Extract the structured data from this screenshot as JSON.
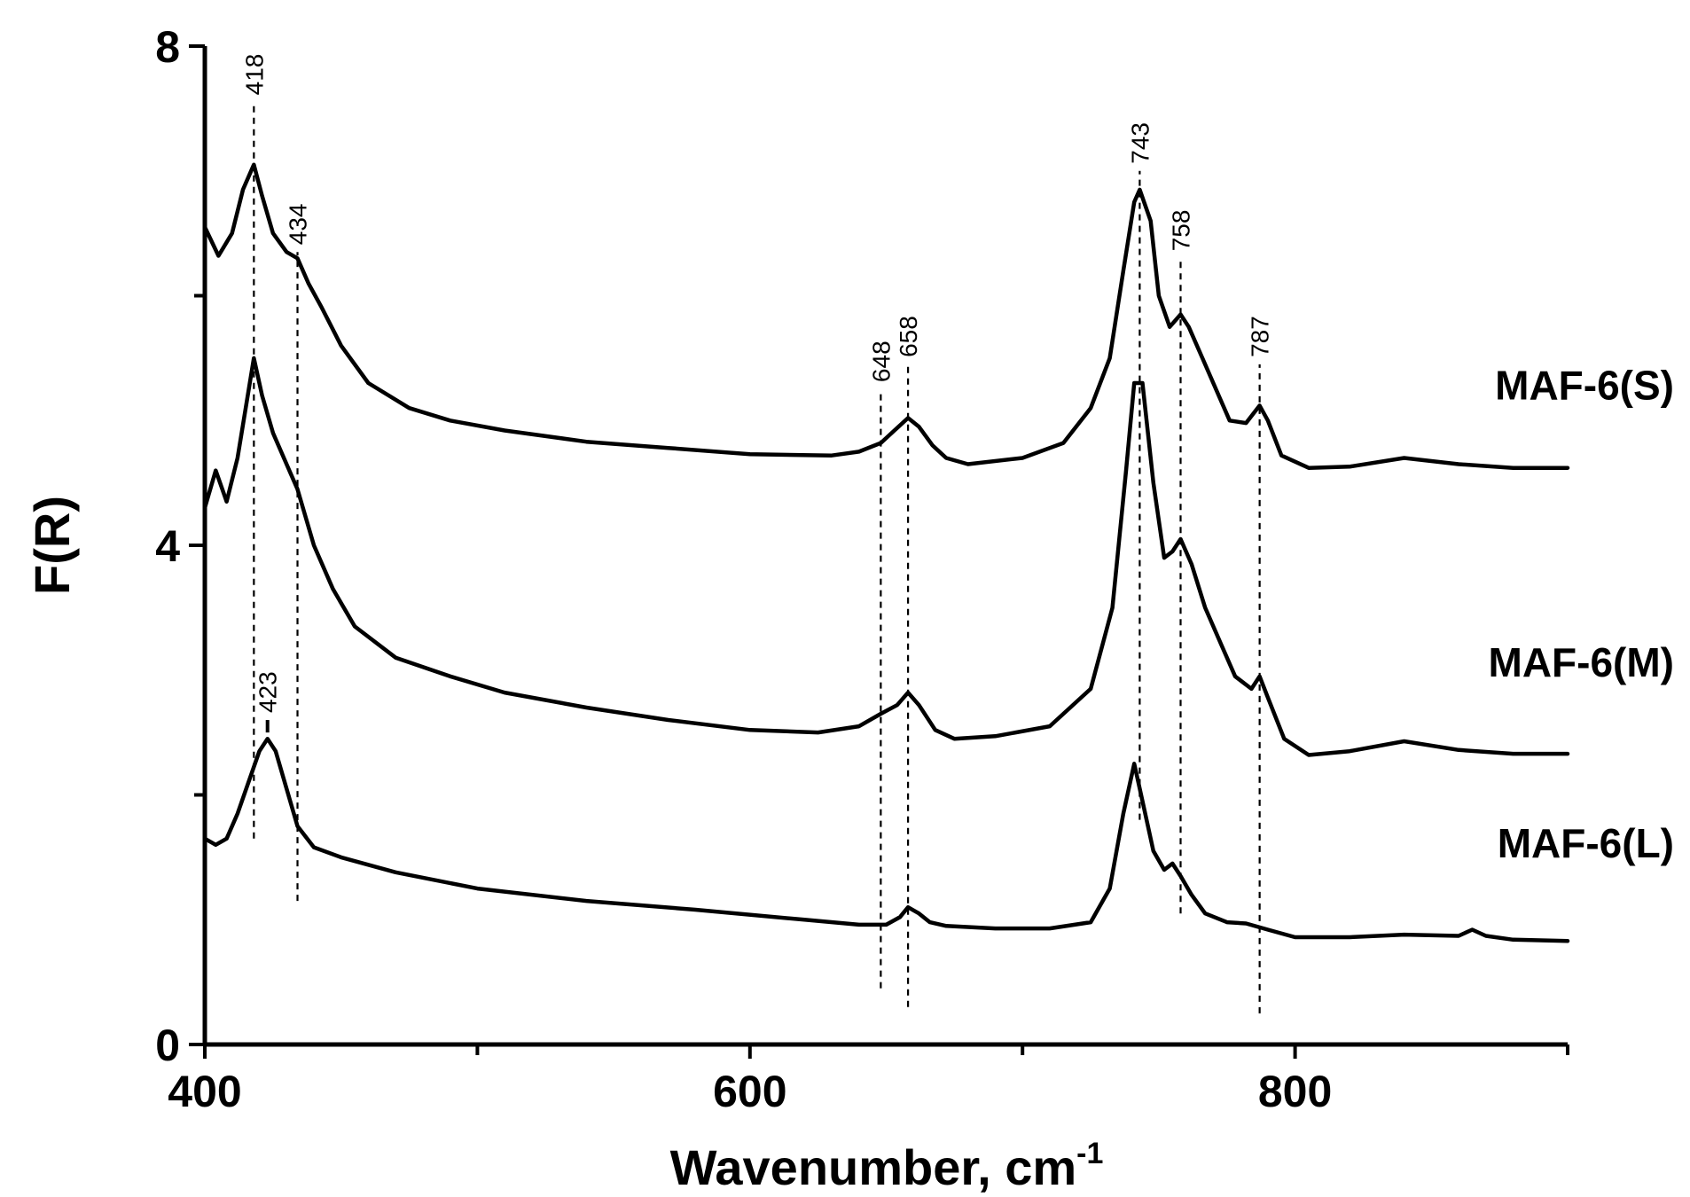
{
  "chart_data": {
    "type": "line",
    "title": "",
    "xlabel": "Wavenumber, cm",
    "xlabel_superscript": "-1",
    "ylabel": "F(R)",
    "xlim": [
      400,
      900
    ],
    "ylim": [
      0,
      8
    ],
    "x_ticks": [
      400,
      600,
      800
    ],
    "x_minor_ticks": [
      500,
      700,
      900
    ],
    "y_ticks": [
      0,
      4,
      8
    ],
    "y_minor_ticks": [
      2,
      6
    ],
    "grid": false,
    "series": [
      {
        "name": "MAF-6(S)",
        "x": [
          400,
          405,
          410,
          414,
          418,
          421,
          425,
          430,
          434,
          438,
          443,
          450,
          460,
          475,
          490,
          510,
          540,
          570,
          600,
          630,
          640,
          648,
          653,
          658,
          662,
          667,
          672,
          680,
          700,
          715,
          725,
          732,
          737,
          741,
          743,
          747,
          750,
          754,
          758,
          761,
          766,
          772,
          776,
          782,
          787,
          790,
          795,
          805,
          820,
          840,
          860,
          880,
          900
        ],
        "y": [
          6.55,
          6.32,
          6.5,
          6.85,
          7.05,
          6.8,
          6.5,
          6.35,
          6.3,
          6.1,
          5.9,
          5.6,
          5.3,
          5.1,
          5.0,
          4.92,
          4.83,
          4.78,
          4.73,
          4.72,
          4.75,
          4.82,
          4.92,
          5.02,
          4.95,
          4.8,
          4.7,
          4.65,
          4.7,
          4.82,
          5.1,
          5.5,
          6.2,
          6.75,
          6.85,
          6.6,
          6.0,
          5.75,
          5.85,
          5.75,
          5.5,
          5.2,
          5.0,
          4.98,
          5.12,
          5.0,
          4.72,
          4.62,
          4.63,
          4.7,
          4.65,
          4.62,
          4.62
        ]
      },
      {
        "name": "MAF-6(M)",
        "x": [
          400,
          404,
          408,
          412,
          415,
          418,
          421,
          425,
          430,
          434,
          440,
          447,
          455,
          470,
          490,
          510,
          540,
          570,
          600,
          625,
          640,
          648,
          654,
          658,
          662,
          668,
          675,
          690,
          710,
          725,
          733,
          738,
          741,
          744,
          748,
          752,
          755,
          758,
          762,
          767,
          773,
          778,
          784,
          787,
          790,
          796,
          805,
          820,
          840,
          860,
          880,
          900
        ],
        "y": [
          4.3,
          4.6,
          4.35,
          4.7,
          5.1,
          5.5,
          5.2,
          4.9,
          4.65,
          4.45,
          4.0,
          3.65,
          3.35,
          3.1,
          2.95,
          2.82,
          2.7,
          2.6,
          2.52,
          2.5,
          2.55,
          2.65,
          2.72,
          2.82,
          2.72,
          2.52,
          2.45,
          2.47,
          2.55,
          2.85,
          3.5,
          4.6,
          5.3,
          5.3,
          4.5,
          3.9,
          3.95,
          4.05,
          3.85,
          3.5,
          3.2,
          2.95,
          2.85,
          2.95,
          2.78,
          2.45,
          2.32,
          2.35,
          2.43,
          2.36,
          2.33,
          2.33
        ]
      },
      {
        "name": "MAF-6(L)",
        "x": [
          400,
          404,
          408,
          412,
          416,
          420,
          423,
          426,
          430,
          434,
          440,
          450,
          470,
          500,
          540,
          580,
          620,
          640,
          650,
          655,
          658,
          662,
          666,
          672,
          690,
          710,
          725,
          732,
          737,
          741,
          744,
          748,
          752,
          755,
          758,
          762,
          767,
          775,
          782,
          790,
          800,
          820,
          840,
          860,
          865,
          870,
          880,
          900
        ],
        "y": [
          1.65,
          1.6,
          1.65,
          1.85,
          2.1,
          2.35,
          2.45,
          2.35,
          2.05,
          1.75,
          1.58,
          1.5,
          1.38,
          1.25,
          1.15,
          1.08,
          1.0,
          0.96,
          0.96,
          1.02,
          1.1,
          1.05,
          0.98,
          0.95,
          0.93,
          0.93,
          0.98,
          1.25,
          1.85,
          2.25,
          1.95,
          1.55,
          1.4,
          1.45,
          1.35,
          1.2,
          1.05,
          0.98,
          0.97,
          0.92,
          0.86,
          0.86,
          0.88,
          0.87,
          0.92,
          0.87,
          0.84,
          0.83
        ]
      }
    ],
    "series_labels": [
      "MAF-6(S)",
      "MAF-6(M)",
      "MAF-6(L)"
    ],
    "annotations": [
      {
        "label": "418",
        "x": 418,
        "y_from": 1.65,
        "y_to": 7.55
      },
      {
        "label": "423",
        "x": 423,
        "y_from": 2.5,
        "y_to": 2.6
      },
      {
        "label": "434",
        "x": 434,
        "y_from": 1.15,
        "y_to": 6.35
      },
      {
        "label": "648",
        "x": 648,
        "y_from": 0.45,
        "y_to": 5.25
      },
      {
        "label": "658",
        "x": 658,
        "y_from": 0.3,
        "y_to": 5.45
      },
      {
        "label": "743",
        "x": 743,
        "y_from": 1.8,
        "y_to": 7.0
      },
      {
        "label": "758",
        "x": 758,
        "y_from": 1.05,
        "y_to": 6.3
      },
      {
        "label": "787",
        "x": 787,
        "y_from": 0.25,
        "y_to": 5.45
      }
    ]
  }
}
